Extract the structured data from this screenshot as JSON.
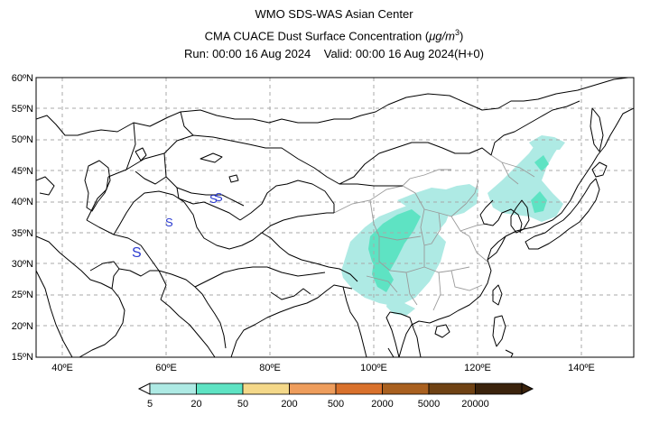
{
  "header": {
    "title": "WMO SDS-WAS Asian Center",
    "subtitle_prefix": "CMA CUACE Dust Surface Concentration (",
    "unit_mu": "μg/m",
    "unit_exp": "3",
    "subtitle_suffix": ")",
    "run": "Run: 00:00 16 Aug 2024",
    "valid": "Valid: 00:00 16 Aug 2024(H+0)"
  },
  "map": {
    "lon_range": [
      35,
      150
    ],
    "lat_range": [
      15,
      60
    ],
    "lat_labels": [
      "15ºN",
      "20ºN",
      "25ºN",
      "30ºN",
      "35ºN",
      "40ºN",
      "45ºN",
      "50ºN",
      "55ºN",
      "60ºN"
    ],
    "lon_labels": [
      "40ºE",
      "60ºE",
      "80ºE",
      "100ºE",
      "120ºE",
      "140ºE"
    ],
    "markers": [
      "S",
      "S",
      "S",
      "S"
    ]
  },
  "colorbar": {
    "labels": [
      "5",
      "20",
      "50",
      "200",
      "500",
      "2000",
      "5000",
      "20000"
    ],
    "colors": [
      "#aeeae4",
      "#5ee3c3",
      "#f4d889",
      "#ee9d5c",
      "#d9712c",
      "#a9601f",
      "#6f4214",
      "#3b230c"
    ]
  },
  "colors": {
    "dust_light": "#aeeae4",
    "dust_mid": "#5ee3c3",
    "coastline": "#000000",
    "province": "#999999",
    "marker": "#2b3bd0"
  }
}
